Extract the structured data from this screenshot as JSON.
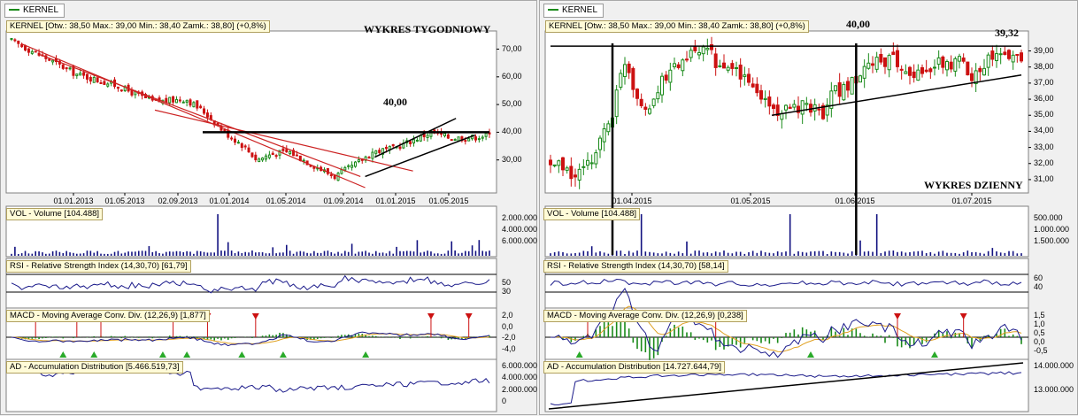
{
  "colors": {
    "up": "#1a8a1a",
    "down": "#cc1111",
    "channel": "#cc2222",
    "blue": "#1a1a8a",
    "volume": "#121280",
    "orange": "#e0a020",
    "black": "#000000"
  },
  "chart_data": [
    {
      "id": "weekly",
      "type": "candlestick",
      "legend_tab": "KERNEL",
      "header": "KERNEL [Otw.: 38,50  Max.: 39,00  Min.: 38,40  Zamk.: 38,80] (+0,8%)",
      "title": "WYKRES TYGODNIOWY",
      "annotation": "40,00",
      "resistance_level": 40,
      "y_ticks": [
        "70,00",
        "60,00",
        "50,00",
        "40,00",
        "30,00"
      ],
      "y_tick_values": [
        70,
        60,
        50,
        40,
        30
      ],
      "x_ticks": [
        "01.01.2013",
        "01.05.2013",
        "02.09.2013",
        "01.01.2014",
        "01.05.2014",
        "01.09.2014",
        "01.01.2015",
        "01.05.2015"
      ],
      "price_path": [
        [
          0,
          73
        ],
        [
          6,
          66
        ],
        [
          10,
          61
        ],
        [
          16,
          57
        ],
        [
          22,
          51
        ],
        [
          27,
          52
        ],
        [
          30,
          47
        ],
        [
          33,
          40
        ],
        [
          36,
          35
        ],
        [
          38,
          30
        ],
        [
          40,
          32
        ],
        [
          43,
          33
        ],
        [
          46,
          29
        ],
        [
          50,
          24
        ],
        [
          53,
          28
        ],
        [
          56,
          33
        ],
        [
          59,
          34
        ],
        [
          62,
          37
        ],
        [
          65,
          40
        ],
        [
          68,
          38
        ],
        [
          71,
          38
        ],
        [
          74,
          39
        ]
      ],
      "sub_labels": {
        "vol": "VOL - Volume [104.488]",
        "rsi": "RSI - Relative Strength Index (14,30,70) [61,79]",
        "macd": "MACD - Moving Average Conv. Div. (12,26,9) [1,877]",
        "ad": "AD - Accumulation Distribution [5.466.519,73]"
      },
      "vol_ticks": [
        "6.000.000",
        "4.000.000",
        "2.000.000"
      ],
      "rsi_ticks": [
        "50",
        "30"
      ],
      "macd_ticks": [
        "2,0",
        "0,0",
        "-2,0",
        "-4,0"
      ],
      "ad_ticks": [
        "6.000.000",
        "4.000.000",
        "2.000.000",
        "0"
      ]
    },
    {
      "id": "daily",
      "type": "candlestick",
      "legend_tab": "KERNEL",
      "header": "KERNEL [Otw.: 38,50  Max.: 39,00  Min.: 38,40  Zamk.: 38,80] (+0,8%)",
      "title": "WYKRES DZIENNY",
      "annotation_high": "40,00",
      "annotation_last": "39,32",
      "resistance_level": 39.3,
      "y_ticks": [
        "39,00",
        "38,00",
        "37,00",
        "36,00",
        "35,00",
        "34,00",
        "33,00",
        "32,00",
        "31,00"
      ],
      "y_tick_values": [
        39,
        38,
        37,
        36,
        35,
        34,
        33,
        32,
        31
      ],
      "x_ticks": [
        "01.04.2015",
        "01.05.2015",
        "01.06.2015",
        "01.07.2015"
      ],
      "price_path": [
        [
          0,
          32
        ],
        [
          3,
          31.6
        ],
        [
          6,
          31.2
        ],
        [
          9,
          31.8
        ],
        [
          12,
          33.5
        ],
        [
          15,
          35.2
        ],
        [
          18,
          38.5
        ],
        [
          21,
          36.2
        ],
        [
          24,
          35.5
        ],
        [
          27,
          37
        ],
        [
          30,
          38
        ],
        [
          33,
          38.6
        ],
        [
          36,
          38.9
        ],
        [
          39,
          38.8
        ],
        [
          42,
          37.5
        ],
        [
          45,
          37.8
        ],
        [
          48,
          37
        ],
        [
          51,
          36.2
        ],
        [
          54,
          35.4
        ],
        [
          57,
          35.2
        ],
        [
          60,
          35.4
        ],
        [
          63,
          35.6
        ],
        [
          66,
          35.2
        ],
        [
          69,
          36.5
        ],
        [
          72,
          36.8
        ],
        [
          75,
          37.2
        ],
        [
          78,
          38.4
        ],
        [
          81,
          38.4
        ],
        [
          84,
          38.3
        ],
        [
          87,
          37.8
        ],
        [
          90,
          37.5
        ],
        [
          93,
          38.2
        ],
        [
          96,
          38.1
        ],
        [
          99,
          38.4
        ],
        [
          102,
          37.6
        ],
        [
          105,
          38.3
        ],
        [
          108,
          38.7
        ],
        [
          111,
          38.6
        ],
        [
          114,
          38.8
        ]
      ],
      "sub_labels": {
        "vol": "VOL - Volume [104.488]",
        "rsi": "RSI - Relative Strength Index (14,30,70) [58,14]",
        "macd": "MACD - Moving Average Conv. Div. (12,26,9) [0,238]",
        "ad": "AD - Accumulation Distribution [14.727.644,79]"
      },
      "vol_ticks": [
        "1.500.000",
        "1.000.000",
        "500.000"
      ],
      "rsi_ticks": [
        "60",
        "40"
      ],
      "macd_ticks": [
        "1,5",
        "1,0",
        "0,5",
        "0,0",
        "-0,5"
      ],
      "ad_ticks": [
        "14.000.000",
        "13.000.000"
      ]
    }
  ]
}
